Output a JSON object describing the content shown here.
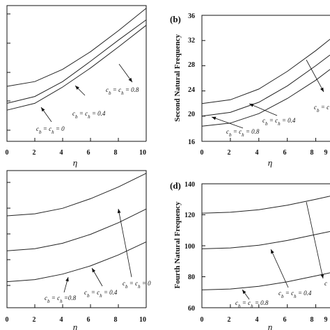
{
  "chart_data": [
    {
      "id": "a",
      "type": "line",
      "panel_label": "",
      "ylabel": "",
      "xlabel": "η",
      "x": [
        0,
        2,
        4,
        6,
        8,
        10
      ],
      "xlim": [
        0,
        10
      ],
      "ylim": [
        0,
        100
      ],
      "yticks": [],
      "xticks": [
        "0",
        "2",
        "4",
        "6",
        "8",
        "10"
      ],
      "series": [
        {
          "values": [
            40.5,
            44.0,
            53.0,
            66.0,
            81.5,
            98.0
          ]
        },
        {
          "values": [
            28.0,
            33.0,
            44.0,
            59.0,
            74.5,
            89.5
          ]
        },
        {
          "values": [
            23.0,
            28.0,
            40.0,
            54.0,
            69.5,
            85.5
          ]
        }
      ],
      "annotations": [
        {
          "text": "c_b = c_h = 0.8"
        },
        {
          "text": "c_b = c_h = 0.4"
        },
        {
          "text": "c_b = c_h = 0"
        }
      ]
    },
    {
      "id": "b",
      "type": "line",
      "panel_label": "(b)",
      "ylabel": "Second Natural Frequency",
      "xlabel": "η",
      "x": [
        0,
        2,
        4,
        6,
        8,
        9
      ],
      "xlim": [
        0,
        9
      ],
      "ylim": [
        16,
        36
      ],
      "yticks": [
        "16",
        "20",
        "24",
        "28",
        "32",
        "36"
      ],
      "xticks": [
        "0",
        "2",
        "4",
        "6",
        "8",
        "9"
      ],
      "series": [
        {
          "values": [
            22.0,
            22.6,
            24.3,
            27.1,
            30.4,
            32.2
          ]
        },
        {
          "values": [
            20.0,
            20.6,
            22.2,
            24.8,
            28.0,
            29.7
          ]
        },
        {
          "values": [
            18.4,
            18.9,
            20.4,
            22.8,
            25.7,
            27.4
          ]
        }
      ],
      "annotations": [
        {
          "text": "c_b = c_h = 0.8"
        },
        {
          "text": "c_b = c_h = 0.4"
        },
        {
          "text": "c_b = c"
        }
      ]
    },
    {
      "id": "c",
      "type": "line",
      "panel_label": "",
      "ylabel": "",
      "xlabel": "η",
      "x": [
        0,
        2,
        4,
        6,
        8,
        10
      ],
      "xlim": [
        0,
        10
      ],
      "ylim": [
        0,
        100
      ],
      "yticks": [],
      "xticks": [
        "0",
        "2",
        "4",
        "6",
        "8",
        "10"
      ],
      "series": [
        {
          "values": [
            67.0,
            68.5,
            72.5,
            79.5,
            88.0,
            98.0
          ]
        },
        {
          "values": [
            41.5,
            43.0,
            47.0,
            53.5,
            62.0,
            72.0
          ]
        },
        {
          "values": [
            19.0,
            20.5,
            24.5,
            30.5,
            38.5,
            48.0
          ]
        }
      ],
      "annotations": [
        {
          "text": "c_b = c_h = 0.8"
        },
        {
          "text": "c_b = c_h = 0.4"
        },
        {
          "text": "c_b = c_h = 0"
        }
      ]
    },
    {
      "id": "d",
      "type": "line",
      "panel_label": "(d)",
      "ylabel": "Fourth Natural Frequency",
      "xlabel": "η",
      "x": [
        0,
        2,
        4,
        6,
        8,
        9
      ],
      "xlim": [
        0,
        9
      ],
      "ylim": [
        60,
        140
      ],
      "yticks": [
        "60",
        "80",
        "100",
        "120",
        "140"
      ],
      "xticks": [
        "0",
        "2",
        "4",
        "6",
        "8",
        "9"
      ],
      "series": [
        {
          "values": [
            121.0,
            121.6,
            123.3,
            126.2,
            130.0,
            132.0
          ]
        },
        {
          "values": [
            98.0,
            98.6,
            100.3,
            103.4,
            107.3,
            109.2
          ]
        },
        {
          "values": [
            71.5,
            72.1,
            73.8,
            76.7,
            80.6,
            82.5
          ]
        }
      ],
      "annotations": [
        {
          "text": "c_b = c_h = 0.8"
        },
        {
          "text": "c_b = c_h = 0.4"
        },
        {
          "text": "c"
        }
      ]
    }
  ]
}
